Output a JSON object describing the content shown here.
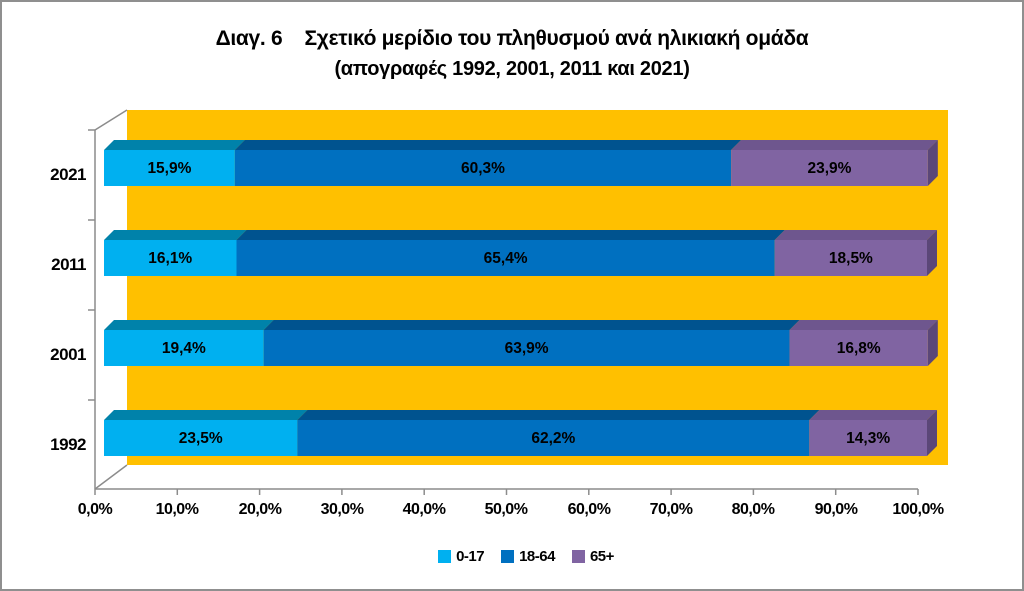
{
  "title": {
    "line1": "Διαγ. 6    Σχετικό μερίδιο του πληθυσμού ανά ηλικιακή ομάδα",
    "line2": "(απογραφές 1992, 2001, 2011 και 2021)"
  },
  "chart_data": {
    "type": "bar",
    "orientation": "horizontal",
    "stacked": true,
    "percent_total": 100,
    "title": "Διαγ. 6 Σχετικό μερίδιο του πληθυσμού ανά ηλικιακή ομάδα (απογραφές 1992, 2001, 2011 και 2021)",
    "xlabel": "",
    "ylabel": "",
    "categories": [
      "2021",
      "2011",
      "2001",
      "1992"
    ],
    "series": [
      {
        "name": "0-17",
        "color": "#00B0F0",
        "shade": "#0082AA",
        "side": "#006E92",
        "values": [
          15.9,
          16.1,
          19.4,
          23.5
        ]
      },
      {
        "name": "18-64",
        "color": "#0070C0",
        "shade": "#00538F",
        "side": "#004578",
        "values": [
          60.3,
          65.4,
          63.9,
          62.2
        ]
      },
      {
        "name": "65+",
        "color": "#8064A2",
        "shade": "#6E568E",
        "side": "#5B4778",
        "values": [
          23.9,
          18.5,
          16.8,
          14.3
        ]
      }
    ],
    "value_labels": [
      [
        "15,9%",
        "60,3%",
        "23,9%"
      ],
      [
        "16,1%",
        "65,4%",
        "18,5%"
      ],
      [
        "19,4%",
        "63,9%",
        "16,8%"
      ],
      [
        "23,5%",
        "62,2%",
        "14,3%"
      ]
    ],
    "x_axis": {
      "min": 0,
      "max": 100,
      "tick_step": 10,
      "tick_labels": [
        "0,0%",
        "10,0%",
        "20,0%",
        "30,0%",
        "40,0%",
        "50,0%",
        "60,0%",
        "70,0%",
        "80,0%",
        "90,0%",
        "100,0%"
      ]
    },
    "plot_background": "#FFC000",
    "axis_color": "#8C8C8C",
    "label_color": "#000000",
    "legend": {
      "position": "bottom",
      "entries": [
        "0-17",
        "18-64",
        "65+"
      ]
    },
    "grid": false,
    "effect": "3d"
  }
}
